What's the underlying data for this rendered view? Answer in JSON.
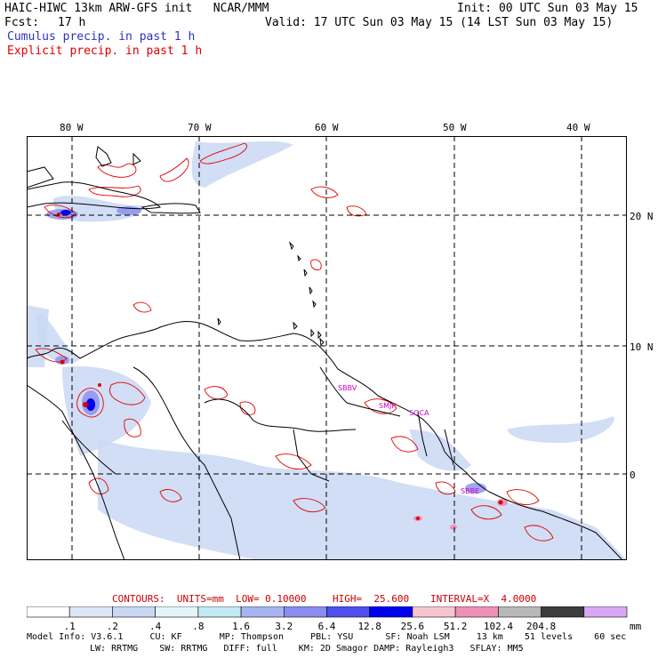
{
  "header": {
    "model": "HAIC-HIWC 13km ARW-GFS init   NCAR/MMM",
    "init": "Init: 00 UTC Sun 03 May 15",
    "fcst_label": "Fcst:",
    "fcst_value": "17 h",
    "valid": "Valid: 17 UTC Sun 03 May 15 (14 LST Sun 03 May 15)",
    "cumulus": "Cumulus precip. in past 1 h",
    "explicit": "Explicit precip. in past 1 h",
    "cumulus_color": "#3030c0",
    "explicit_color": "#e00000"
  },
  "map": {
    "lon_labels": [
      "80 W",
      "70 W",
      "60 W",
      "50 W",
      "40 W"
    ],
    "lat_labels": [
      "20 N",
      "10 N",
      "0"
    ],
    "stations": [
      "SBBV",
      "SMJP",
      "SOCA",
      "SBBE"
    ],
    "station_color": "#cc00cc"
  },
  "contours": {
    "label": "CONTOURS:  UNITS=mm  LOW= 0.10000",
    "high": "HIGH=  25.600",
    "interval": "INTERVAL=X  4.0000",
    "color": "#cc0000"
  },
  "colorbar": {
    "colors": [
      "#ffffff",
      "#dde6f6",
      "#c9d8f3",
      "#e4f5fa",
      "#c3eaf3",
      "#a8b4f0",
      "#8a8cf0",
      "#5050f0",
      "#0000ee",
      "#f5c6d2",
      "#f090b6",
      "#b8b8b8",
      "#3c3c3c",
      "#d9a8f5"
    ],
    "ticks": [
      ".1",
      ".2",
      ".4",
      ".8",
      "1.6",
      "3.2",
      "6.4",
      "12.8",
      "25.6",
      "51.2",
      "102.4",
      "204.8"
    ],
    "unit": "mm"
  },
  "model_info": {
    "line1": "Model Info: V3.6.1     CU: KF       MP: Thompson     PBL: YSU      SF: Noah LSM     13 km    51 levels    60 sec",
    "line2": "LW: RRTMG    SW: RRTMG   DIFF: full    KM: 2D Smagor DAMP: Rayleigh3   SFLAY: MM5"
  }
}
